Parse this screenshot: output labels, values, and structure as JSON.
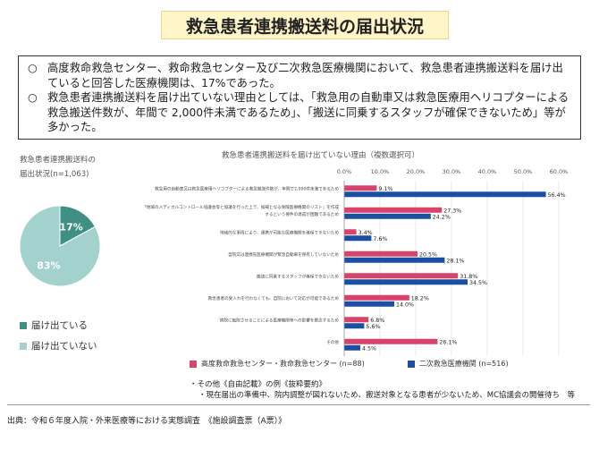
{
  "title": "救急患者連携搬送料の届出状況",
  "summary": {
    "bullet_mark": "○",
    "points": [
      "高度救命救急センター、救命救急センター及び二次救急医療機関において、救急患者連携搬送料を届け出ていると回答した医療機関は、17%であった。",
      "救急患者連携搬送料を届け出ていない理由としては、「救急用の自動車又は救急医療用ヘリコプターによる救急搬送件数が、年間で 2,000件未満であるため」、「搬送に同乗するスタッフが確保できないため」等が多かった。"
    ]
  },
  "pie": {
    "title_line1": "救急患者連携搬送料の",
    "title_line2": "届出状況(n=1,063)",
    "legend": [
      {
        "label": "届け出ている",
        "color": "#3f8f84"
      },
      {
        "label": "届け出ていない",
        "color": "#a3d1cd"
      }
    ]
  },
  "bar": {
    "title": "救急患者連携搬送料を届け出ていない理由（複数選択可）",
    "legend": [
      {
        "label": "高度救命救急センター・救命救急センター (n=88)",
        "color": "#d9436b"
      },
      {
        "label": "二次救急医療機関 (n=516)",
        "color": "#1b4fa1"
      }
    ]
  },
  "notes": {
    "line1": "・その他《自由記載》の例《抜粋要約》",
    "line2": "・現在届出の準備中、院内調整が図れないため、搬送対象となる患者が少ないため、MC協議会の開催待ち　等"
  },
  "source": "出典：令和６年度入院・外来医療等における実態調査　《施設調査票（A票）》",
  "chart_data": [
    {
      "type": "pie",
      "title": "救急患者連携搬送料の届出状況(n=1,063)",
      "labels": [
        "届け出ている",
        "届け出ていない"
      ],
      "values": [
        17,
        83
      ],
      "value_labels": [
        "17%",
        "83%"
      ],
      "colors": [
        "#3f8f84",
        "#a3d1cd"
      ]
    },
    {
      "type": "bar",
      "orientation": "horizontal",
      "title": "救急患者連携搬送料を届け出ていない理由（複数選択可）",
      "categories": [
        "救急用の自動車又は救急医療用ヘリコプターによる救急搬送件数が、年間で2,000件未満であるため",
        [
          "「地域のメディカルコントロール協議会等と協議を行った上で、候補となる保険医療機関のリスト」を作成するという要件の達成が困難であるため"
        ],
        "地域的な事情により、連携が可能な医療機関を確保できないため",
        "自院又は連携先医療機関が緊急自動車を保有していないため",
        "搬送に同乗するスタッフが確保できないため",
        "救急患者の受入れを行わなくても、自院において対応が可能であるため",
        "病院に転院させることによる医療機関等への影響を懸念するため",
        "その他"
      ],
      "series": [
        {
          "name": "高度救命救急センター・救命救急センター (n=88)",
          "values": [
            9.1,
            27.3,
            3.4,
            20.5,
            31.8,
            18.2,
            6.8,
            26.1
          ],
          "labels": [
            "9.1%",
            "27.3%",
            "3.4%",
            "20.5%",
            "31.8%",
            "18.2%",
            "6.8%",
            "26.1%"
          ],
          "color": "#d9436b"
        },
        {
          "name": "二次救急医療機関 (n=516)",
          "values": [
            56.4,
            24.2,
            7.6,
            28.1,
            34.5,
            14.0,
            5.6,
            4.5
          ],
          "labels": [
            "56.4%",
            "24.2%",
            "7.6%",
            "28.1%",
            "34.5%",
            "14.0%",
            "5.6%",
            "4.5%"
          ],
          "color": "#1b4fa1"
        }
      ],
      "xlim": [
        0,
        60
      ],
      "ticks": [
        "0.0%",
        "10.0%",
        "20.0%",
        "30.0%",
        "40.0%",
        "50.0%",
        "60.0%"
      ],
      "grid": true
    }
  ]
}
